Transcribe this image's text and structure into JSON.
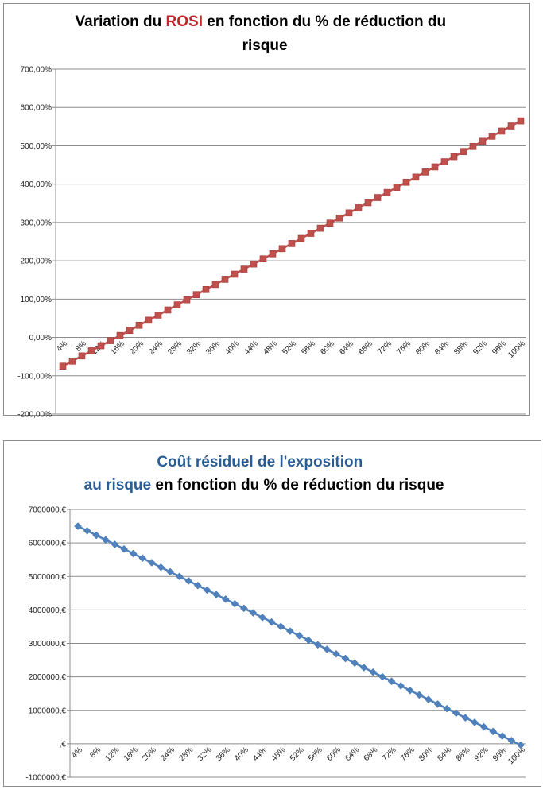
{
  "chart_data": [
    {
      "type": "line",
      "title": [
        "Variation du ",
        "ROSI",
        " en fonction du % de réduction du",
        "risque"
      ],
      "categories": [
        "4%",
        null,
        "8%",
        null,
        "12%",
        null,
        "16%",
        null,
        "20%",
        null,
        "24%",
        null,
        "28%",
        null,
        "32%",
        null,
        "36%",
        null,
        "40%",
        null,
        "44%",
        null,
        "48%",
        null,
        "52%",
        null,
        "56%",
        null,
        "60%",
        null,
        "64%",
        null,
        "68%",
        null,
        "72%",
        null,
        "76%",
        null,
        "80%",
        null,
        "84%",
        null,
        "88%",
        null,
        "92%",
        null,
        "96%",
        null,
        "100%"
      ],
      "series": [
        {
          "color": "#c0504d",
          "marker": "square",
          "values": [
            -75,
            -61.7,
            -48.3,
            -35,
            -21.7,
            -8.3,
            5,
            18.3,
            31.7,
            45,
            58.3,
            71.7,
            85,
            98.3,
            111.7,
            125,
            138.3,
            151.7,
            165,
            178.3,
            191.7,
            205,
            218.3,
            231.7,
            245,
            258.3,
            271.7,
            285,
            298.3,
            311.7,
            325,
            338.3,
            351.7,
            365,
            378.3,
            391.7,
            405,
            418.3,
            431.7,
            445,
            458.3,
            471.7,
            485,
            498.3,
            511.7,
            525,
            538.3,
            551.7,
            565
          ]
        }
      ],
      "ylim": [
        -200,
        700
      ],
      "yticks": [
        {
          "value": -200,
          "label": "-200,00%"
        },
        {
          "value": -100,
          "label": "-100,00%"
        },
        {
          "value": 0,
          "label": "0,00%"
        },
        {
          "value": 100,
          "label": "100,00%"
        },
        {
          "value": 200,
          "label": "200,00%"
        },
        {
          "value": 300,
          "label": "300,00%"
        },
        {
          "value": 400,
          "label": "400,00%"
        },
        {
          "value": 500,
          "label": "500,00%"
        },
        {
          "value": 600,
          "label": "600,00%"
        },
        {
          "value": 700,
          "label": "700,00%"
        }
      ],
      "grid": true
    },
    {
      "type": "line",
      "title": [
        "Coût résiduel de l'exposition",
        "au risque",
        " en fonction du % de réduction du risque"
      ],
      "categories": [
        "4%",
        null,
        "8%",
        null,
        "12%",
        null,
        "16%",
        null,
        "20%",
        null,
        "24%",
        null,
        "28%",
        null,
        "32%",
        null,
        "36%",
        null,
        "40%",
        null,
        "44%",
        null,
        "48%",
        null,
        "52%",
        null,
        "56%",
        null,
        "60%",
        null,
        "64%",
        null,
        "68%",
        null,
        "72%",
        null,
        "76%",
        null,
        "80%",
        null,
        "84%",
        null,
        "88%",
        null,
        "92%",
        null,
        "96%",
        null,
        "100%"
      ],
      "series": [
        {
          "color": "#4f81bd",
          "marker": "diamond",
          "values": [
            6500000,
            6363750,
            6227500,
            6091250,
            5955000,
            5818750,
            5682500,
            5546250,
            5410000,
            5273750,
            5137500,
            5001250,
            4865000,
            4728750,
            4592500,
            4456250,
            4320000,
            4183750,
            4047500,
            3911250,
            3775000,
            3638750,
            3502500,
            3366250,
            3230000,
            3093750,
            2957500,
            2821250,
            2685000,
            2548750,
            2412500,
            2276250,
            2140000,
            2003750,
            1867500,
            1731250,
            1595000,
            1458750,
            1322500,
            1186250,
            1050000,
            913750,
            777500,
            641250,
            505000,
            368750,
            232500,
            96250,
            -40000
          ]
        }
      ],
      "ylim": [
        -1000000,
        7000000
      ],
      "yticks": [
        {
          "value": -1000000,
          "label": "-1000000,€"
        },
        {
          "value": 0,
          "label": ",€"
        },
        {
          "value": 1000000,
          "label": "1000000,€"
        },
        {
          "value": 2000000,
          "label": "2000000,€"
        },
        {
          "value": 3000000,
          "label": "3000000,€"
        },
        {
          "value": 4000000,
          "label": "4000000,€"
        },
        {
          "value": 5000000,
          "label": "5000000,€"
        },
        {
          "value": 6000000,
          "label": "6000000,€"
        },
        {
          "value": 7000000,
          "label": "7000000,€"
        }
      ],
      "grid": true
    }
  ]
}
